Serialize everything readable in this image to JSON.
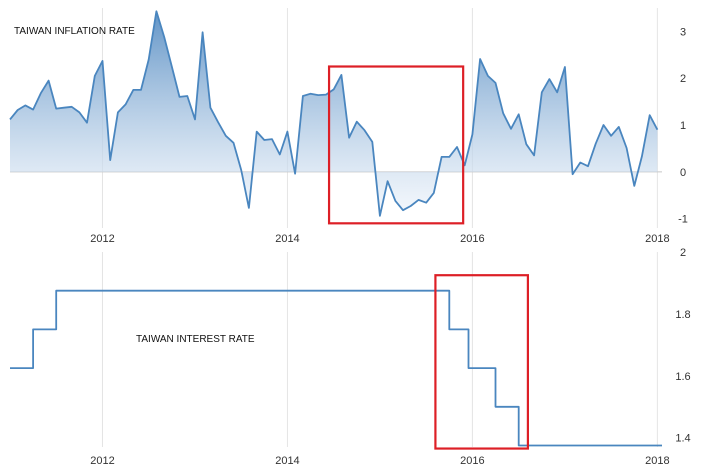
{
  "colors": {
    "line": "#4a86bf",
    "area_top": "#5a8fc4",
    "area_bottom": "#eef4fb",
    "grid": "#e4e4e4",
    "highlight_box": "#dd1f26",
    "baseline": "#c8c8c8"
  },
  "chart_data": [
    {
      "type": "area",
      "title": "TAIWAN INFLATION RATE",
      "xlabel": "",
      "ylabel": "",
      "x_ticks": [
        "2012",
        "2014",
        "2016",
        "2018"
      ],
      "x_tick_values": [
        2012,
        2014,
        2016,
        2018
      ],
      "y_ticks": [
        "-1",
        "0",
        "1",
        "2",
        "3"
      ],
      "y_tick_values": [
        -1,
        0,
        1,
        2,
        3
      ],
      "xlim": [
        2011.0,
        2018.05
      ],
      "ylim": [
        -1.2,
        3.5
      ],
      "grid": true,
      "y_axis_side": "right",
      "highlight": {
        "x0": 2014.45,
        "x1": 2015.9,
        "y0": -1.1,
        "y1": 2.25
      },
      "x": [
        2011.0,
        2011.083,
        2011.167,
        2011.25,
        2011.333,
        2011.417,
        2011.5,
        2011.583,
        2011.667,
        2011.75,
        2011.833,
        2011.917,
        2012.0,
        2012.083,
        2012.167,
        2012.25,
        2012.333,
        2012.417,
        2012.5,
        2012.583,
        2012.667,
        2012.75,
        2012.833,
        2012.917,
        2013.0,
        2013.083,
        2013.167,
        2013.25,
        2013.333,
        2013.417,
        2013.5,
        2013.583,
        2013.667,
        2013.75,
        2013.833,
        2013.917,
        2014.0,
        2014.083,
        2014.167,
        2014.25,
        2014.333,
        2014.417,
        2014.5,
        2014.583,
        2014.667,
        2014.75,
        2014.833,
        2014.917,
        2015.0,
        2015.083,
        2015.167,
        2015.25,
        2015.333,
        2015.417,
        2015.5,
        2015.583,
        2015.667,
        2015.75,
        2015.833,
        2015.917,
        2016.0,
        2016.083,
        2016.167,
        2016.25,
        2016.333,
        2016.417,
        2016.5,
        2016.583,
        2016.667,
        2016.75,
        2016.833,
        2016.917,
        2017.0,
        2017.083,
        2017.167,
        2017.25,
        2017.333,
        2017.417,
        2017.5,
        2017.583,
        2017.667,
        2017.75,
        2017.833,
        2017.917,
        2018.0
      ],
      "values": [
        1.12,
        1.32,
        1.42,
        1.33,
        1.68,
        1.95,
        1.35,
        1.37,
        1.39,
        1.27,
        1.05,
        2.05,
        2.37,
        0.25,
        1.27,
        1.44,
        1.75,
        1.75,
        2.4,
        3.43,
        2.88,
        2.25,
        1.6,
        1.62,
        1.12,
        2.98,
        1.37,
        1.06,
        0.77,
        0.62,
        0.04,
        -0.77,
        0.86,
        0.68,
        0.7,
        0.37,
        0.86,
        -0.04,
        1.62,
        1.67,
        1.64,
        1.65,
        1.76,
        2.07,
        0.73,
        1.07,
        0.89,
        0.64,
        -0.94,
        -0.2,
        -0.62,
        -0.82,
        -0.73,
        -0.6,
        -0.66,
        -0.45,
        0.32,
        0.32,
        0.53,
        0.14,
        0.8,
        2.41,
        2.05,
        1.9,
        1.25,
        0.92,
        1.23,
        0.59,
        0.35,
        1.7,
        1.98,
        1.7,
        2.24,
        -0.05,
        0.2,
        0.12,
        0.6,
        1.0,
        0.77,
        0.96,
        0.51,
        -0.3,
        0.33,
        1.21,
        0.9
      ]
    },
    {
      "type": "line",
      "title": "TAIWAN INTEREST RATE",
      "xlabel": "",
      "ylabel": "",
      "x_ticks": [
        "2012",
        "2014",
        "2016",
        "2018"
      ],
      "x_tick_values": [
        2012,
        2014,
        2016,
        2018
      ],
      "y_ticks": [
        "1.4",
        "1.6",
        "1.8",
        "2"
      ],
      "y_tick_values": [
        1.4,
        1.6,
        1.8,
        2.0
      ],
      "xlim": [
        2011.0,
        2018.05
      ],
      "ylim": [
        1.37,
        2.0
      ],
      "grid": true,
      "y_axis_side": "right",
      "step": true,
      "highlight": {
        "x0": 2015.6,
        "x1": 2016.6,
        "y0": 1.365,
        "y1": 1.925
      },
      "x": [
        2011.0,
        2011.083,
        2011.25,
        2011.417,
        2011.5,
        2015.5,
        2015.625,
        2015.75,
        2015.958,
        2016.25,
        2016.5,
        2018.05
      ],
      "values": [
        1.625,
        1.625,
        1.75,
        1.75,
        1.875,
        1.875,
        1.875,
        1.75,
        1.625,
        1.5,
        1.375,
        1.375
      ]
    }
  ]
}
